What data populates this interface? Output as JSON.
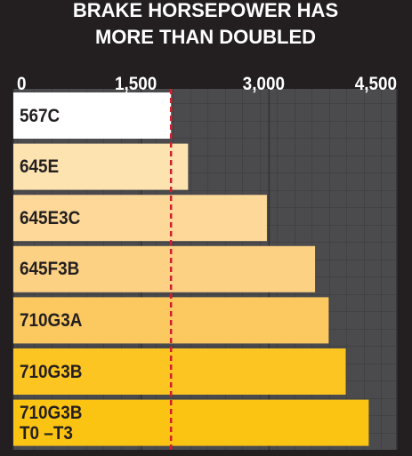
{
  "chart_data": {
    "type": "bar",
    "orientation": "horizontal",
    "title": [
      "BRAKE HORSEPOWER HAS",
      "MORE THAN DOUBLED"
    ],
    "categories": [
      "567C",
      "645E",
      "645E3C",
      "645F3B",
      "710G3A",
      "710G3B",
      "710G3B\nT0 –T3"
    ],
    "values": [
      1850,
      2050,
      2975,
      3540,
      3700,
      3900,
      4170
    ],
    "colors": [
      "#ffffff",
      "#fde3b0",
      "#fdd898",
      "#fdd184",
      "#fcc961",
      "#fcc521",
      "#fcc412"
    ],
    "xlim": [
      0,
      4500
    ],
    "xticks": [
      0,
      {
        "value": 1500,
        "label": "1,500"
      },
      {
        "value": 3000,
        "label": "3,000"
      },
      {
        "value": 4500,
        "label": "4,500"
      }
    ],
    "reference_line": {
      "color": "#d0202e",
      "style": "dashed"
    }
  }
}
